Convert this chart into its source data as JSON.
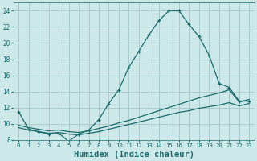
{
  "xlabel": "Humidex (Indice chaleur)",
  "bg_color": "#cce8e8",
  "grid_color": "#aacccc",
  "line_color": "#1a6b6b",
  "xlim": [
    -0.5,
    23.5
  ],
  "ylim": [
    8,
    25
  ],
  "xticks": [
    0,
    1,
    2,
    3,
    4,
    5,
    6,
    7,
    8,
    9,
    10,
    11,
    12,
    13,
    14,
    15,
    16,
    17,
    18,
    19,
    20,
    21,
    22,
    23
  ],
  "yticks": [
    8,
    10,
    12,
    14,
    16,
    18,
    20,
    22,
    24
  ],
  "curve_x": [
    0,
    1,
    2,
    3,
    4,
    5,
    6,
    7,
    8,
    9,
    10,
    11,
    12,
    13,
    14,
    15,
    16,
    17,
    18,
    19,
    20,
    21,
    22,
    23
  ],
  "curve_y": [
    11.5,
    9.3,
    9.0,
    8.7,
    8.8,
    7.8,
    8.7,
    9.2,
    10.5,
    12.5,
    14.2,
    17.0,
    19.0,
    21.0,
    22.8,
    24.0,
    24.0,
    22.3,
    20.8,
    18.5,
    15.0,
    14.5,
    12.8,
    12.8
  ],
  "flat1_x": [
    0,
    1,
    2,
    3,
    4,
    5,
    6,
    7,
    8,
    9,
    10,
    11,
    12,
    13,
    14,
    15,
    16,
    17,
    18,
    19,
    20,
    21,
    22,
    23
  ],
  "flat1_y": [
    9.5,
    9.2,
    9.0,
    8.8,
    8.9,
    8.7,
    8.6,
    8.8,
    9.0,
    9.3,
    9.6,
    9.9,
    10.2,
    10.5,
    10.8,
    11.1,
    11.4,
    11.6,
    11.9,
    12.1,
    12.3,
    12.6,
    12.2,
    12.5
  ],
  "flat2_x": [
    0,
    1,
    2,
    3,
    4,
    5,
    6,
    7,
    8,
    9,
    10,
    11,
    12,
    13,
    14,
    15,
    16,
    17,
    18,
    19,
    20,
    21,
    22,
    23
  ],
  "flat2_y": [
    9.8,
    9.5,
    9.3,
    9.1,
    9.2,
    9.0,
    8.9,
    9.1,
    9.4,
    9.7,
    10.1,
    10.4,
    10.8,
    11.2,
    11.6,
    12.0,
    12.4,
    12.8,
    13.2,
    13.5,
    13.8,
    14.2,
    12.7,
    13.0
  ],
  "xlabel_fontsize": 7.5
}
